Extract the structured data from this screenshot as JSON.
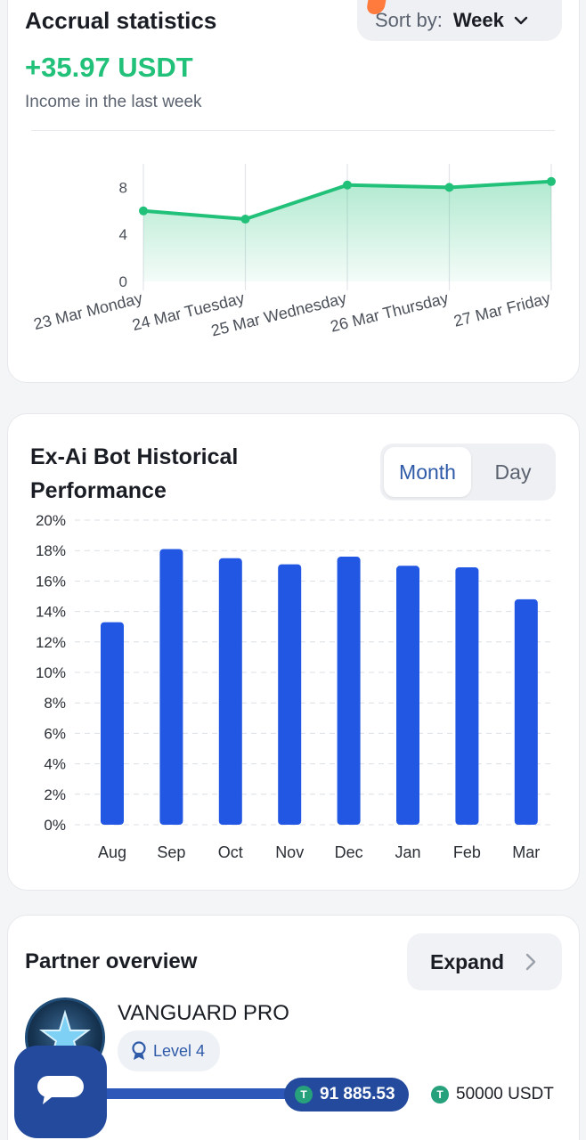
{
  "accrual": {
    "title": "Accrual statistics",
    "sort_label": "Sort by:",
    "sort_value": "Week",
    "income_value": "+35.97 USDT",
    "income_subtitle": "Income in the last week",
    "chart_data": {
      "type": "area",
      "categories": [
        "23 Mar Monday",
        "24 Mar Tuesday",
        "25 Mar Wednesday",
        "26 Mar Thursday",
        "27 Mar Friday"
      ],
      "values": [
        6.0,
        5.3,
        8.2,
        8.0,
        8.5
      ],
      "ylim": [
        0,
        10
      ],
      "yticks": [
        "0",
        "4",
        "8"
      ],
      "color": "#22c17a",
      "grid": "vertical"
    }
  },
  "performance": {
    "title": "Ex-Ai Bot Historical Performance",
    "toggle_month": "Month",
    "toggle_day": "Day",
    "chart_data": {
      "type": "bar",
      "categories": [
        "Aug",
        "Sep",
        "Oct",
        "Nov",
        "Dec",
        "Jan",
        "Feb",
        "Mar"
      ],
      "values": [
        13.3,
        18.1,
        17.5,
        17.1,
        17.6,
        17.0,
        16.9,
        14.8
      ],
      "ylim": [
        0,
        20
      ],
      "yticks": [
        "0%",
        "2%",
        "4%",
        "6%",
        "8%",
        "10%",
        "12%",
        "14%",
        "16%",
        "18%",
        "20%"
      ],
      "color": "#2257e3",
      "grid": "horizontal-dashed"
    }
  },
  "partner": {
    "title": "Partner overview",
    "expand_label": "Expand",
    "name": "VANGUARD PRO",
    "level": "Level 4",
    "balance": "91 885.53",
    "target": "50000 USDT",
    "coin_glyph": "T"
  }
}
